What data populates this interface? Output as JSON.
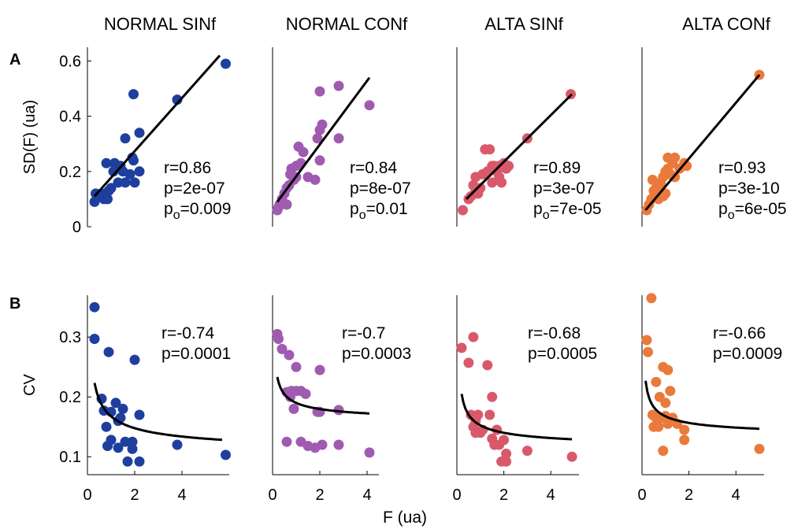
{
  "figure": {
    "column_titles": [
      "NORMAL SINf",
      "NORMAL CONf",
      "ALTA SINf",
      "ALTA CONf"
    ],
    "row_labels": [
      "A",
      "B"
    ],
    "xlabel": "F (ua)",
    "colors": [
      "#1f3f9f",
      "#a05bb0",
      "#d9596a",
      "#ea7a3c"
    ]
  },
  "chart_data": [
    {
      "type": "scatter",
      "row": "A",
      "title": "NORMAL SINf",
      "ylabel": "SD(F) (ua)",
      "xlim": [
        0,
        6.0
      ],
      "ylim": [
        0,
        0.65
      ],
      "yticks": [
        "0",
        "0.2",
        "0.4",
        "0.6"
      ],
      "xticks": [],
      "color": "#1f3f9f",
      "points": [
        [
          0.3,
          0.09
        ],
        [
          0.35,
          0.12
        ],
        [
          0.5,
          0.11
        ],
        [
          0.6,
          0.12
        ],
        [
          0.7,
          0.1
        ],
        [
          0.8,
          0.23
        ],
        [
          0.85,
          0.1
        ],
        [
          0.9,
          0.13
        ],
        [
          1.0,
          0.14
        ],
        [
          1.1,
          0.2
        ],
        [
          1.15,
          0.23
        ],
        [
          1.2,
          0.22
        ],
        [
          1.3,
          0.16
        ],
        [
          1.4,
          0.22
        ],
        [
          1.5,
          0.2
        ],
        [
          1.6,
          0.16
        ],
        [
          1.6,
          0.32
        ],
        [
          1.8,
          0.19
        ],
        [
          1.9,
          0.25
        ],
        [
          1.95,
          0.48
        ],
        [
          1.95,
          0.24
        ],
        [
          2.0,
          0.16
        ],
        [
          2.2,
          0.34
        ],
        [
          2.2,
          0.2
        ],
        [
          3.8,
          0.46
        ],
        [
          5.85,
          0.59
        ]
      ],
      "fit": {
        "kind": "linear",
        "x": [
          0.3,
          5.6
        ],
        "y": [
          0.11,
          0.62
        ]
      },
      "stats": [
        "r=0.86",
        "p=2e-07",
        "p",
        "o",
        "=0.009"
      ]
    },
    {
      "type": "scatter",
      "row": "A",
      "title": "NORMAL CONf",
      "ylabel": "",
      "xlim": [
        0,
        4.5
      ],
      "ylim": [
        0,
        0.65
      ],
      "yticks": [],
      "xticks": [],
      "color": "#a05bb0",
      "points": [
        [
          0.2,
          0.06
        ],
        [
          0.25,
          0.07
        ],
        [
          0.3,
          0.08
        ],
        [
          0.4,
          0.1
        ],
        [
          0.5,
          0.12
        ],
        [
          0.6,
          0.08
        ],
        [
          0.6,
          0.14
        ],
        [
          0.7,
          0.15
        ],
        [
          0.75,
          0.19
        ],
        [
          0.8,
          0.21
        ],
        [
          0.9,
          0.17
        ],
        [
          1.0,
          0.18
        ],
        [
          1.0,
          0.22
        ],
        [
          1.1,
          0.29
        ],
        [
          1.2,
          0.23
        ],
        [
          1.3,
          0.27
        ],
        [
          1.5,
          0.18
        ],
        [
          1.8,
          0.17
        ],
        [
          1.9,
          0.32
        ],
        [
          2.0,
          0.24
        ],
        [
          2.0,
          0.35
        ],
        [
          2.0,
          0.49
        ],
        [
          2.1,
          0.37
        ],
        [
          2.8,
          0.32
        ],
        [
          2.8,
          0.51
        ],
        [
          4.1,
          0.44
        ]
      ],
      "fit": {
        "kind": "linear",
        "x": [
          0.2,
          4.1
        ],
        "y": [
          0.09,
          0.54
        ]
      },
      "stats": [
        "r=0.84",
        "p=8e-07",
        "p",
        "o",
        "=0.01"
      ]
    },
    {
      "type": "scatter",
      "row": "A",
      "title": "ALTA SINf",
      "ylabel": "",
      "xlim": [
        0,
        5.2
      ],
      "ylim": [
        0,
        0.65
      ],
      "yticks": [],
      "xticks": [],
      "color": "#d9596a",
      "points": [
        [
          0.25,
          0.06
        ],
        [
          0.5,
          0.1
        ],
        [
          0.6,
          0.11
        ],
        [
          0.7,
          0.15
        ],
        [
          0.8,
          0.13
        ],
        [
          0.8,
          0.18
        ],
        [
          0.9,
          0.12
        ],
        [
          1.0,
          0.14
        ],
        [
          1.1,
          0.19
        ],
        [
          1.2,
          0.28
        ],
        [
          1.3,
          0.2
        ],
        [
          1.4,
          0.28
        ],
        [
          1.5,
          0.16
        ],
        [
          1.5,
          0.22
        ],
        [
          1.6,
          0.22
        ],
        [
          1.7,
          0.2
        ],
        [
          1.8,
          0.18
        ],
        [
          1.8,
          0.22
        ],
        [
          1.9,
          0.16
        ],
        [
          2.0,
          0.23
        ],
        [
          2.1,
          0.21
        ],
        [
          2.2,
          0.22
        ],
        [
          3.0,
          0.32
        ],
        [
          4.85,
          0.48
        ]
      ],
      "fit": {
        "kind": "linear",
        "x": [
          0.4,
          4.9
        ],
        "y": [
          0.1,
          0.48
        ]
      },
      "stats": [
        "r=0.89",
        "p=3e-07",
        "p",
        "o",
        "=7e-05"
      ]
    },
    {
      "type": "scatter",
      "row": "A",
      "title": "ALTA CONf",
      "ylabel": "",
      "xlim": [
        0,
        5.2
      ],
      "ylim": [
        0,
        0.65
      ],
      "yticks": [],
      "xticks": [],
      "color": "#ea7a3c",
      "points": [
        [
          0.2,
          0.06
        ],
        [
          0.3,
          0.08
        ],
        [
          0.4,
          0.1
        ],
        [
          0.45,
          0.17
        ],
        [
          0.5,
          0.13
        ],
        [
          0.6,
          0.12
        ],
        [
          0.6,
          0.14
        ],
        [
          0.7,
          0.1
        ],
        [
          0.75,
          0.14
        ],
        [
          0.8,
          0.16
        ],
        [
          0.9,
          0.11
        ],
        [
          0.9,
          0.18
        ],
        [
          1.0,
          0.12
        ],
        [
          1.0,
          0.2
        ],
        [
          1.1,
          0.25
        ],
        [
          1.1,
          0.21
        ],
        [
          1.2,
          0.19
        ],
        [
          1.3,
          0.23
        ],
        [
          1.4,
          0.25
        ],
        [
          1.4,
          0.18
        ],
        [
          1.6,
          0.21
        ],
        [
          1.8,
          0.23
        ],
        [
          1.9,
          0.22
        ],
        [
          5.0,
          0.55
        ]
      ],
      "fit": {
        "kind": "linear",
        "x": [
          0.15,
          5.0
        ],
        "y": [
          0.06,
          0.55
        ]
      },
      "stats": [
        "r=0.93",
        "p=3e-10",
        "p",
        "o",
        "=6e-05"
      ]
    },
    {
      "type": "scatter",
      "row": "B",
      "title": "NORMAL SINf",
      "ylabel": "CV",
      "xlim": [
        0,
        6.0
      ],
      "ylim": [
        0.07,
        0.37
      ],
      "yticks": [
        "0.1",
        "0.2",
        "0.3"
      ],
      "xticks": [
        "0",
        "2",
        "4"
      ],
      "color": "#1f3f9f",
      "points": [
        [
          0.3,
          0.35
        ],
        [
          0.3,
          0.297
        ],
        [
          0.6,
          0.197
        ],
        [
          0.7,
          0.177
        ],
        [
          0.8,
          0.15
        ],
        [
          0.85,
          0.118
        ],
        [
          0.9,
          0.275
        ],
        [
          1.0,
          0.128
        ],
        [
          1.0,
          0.175
        ],
        [
          1.2,
          0.19
        ],
        [
          1.3,
          0.16
        ],
        [
          1.3,
          0.115
        ],
        [
          1.4,
          0.165
        ],
        [
          1.5,
          0.18
        ],
        [
          1.6,
          0.125
        ],
        [
          1.7,
          0.092
        ],
        [
          1.9,
          0.113
        ],
        [
          1.9,
          0.125
        ],
        [
          2.0,
          0.262
        ],
        [
          2.2,
          0.092
        ],
        [
          2.2,
          0.17
        ],
        [
          3.8,
          0.12
        ],
        [
          5.85,
          0.103
        ]
      ],
      "fit": {
        "kind": "hyperbolic",
        "a": 0.1,
        "b": 0.0675,
        "x": [
          0.3,
          5.7
        ]
      },
      "stats": [
        "r=-0.74",
        "p=0.0001"
      ]
    },
    {
      "type": "scatter",
      "row": "B",
      "title": "NORMAL CONf",
      "ylabel": "",
      "xlim": [
        0,
        4.5
      ],
      "ylim": [
        0.07,
        0.37
      ],
      "yticks": [],
      "xticks": [
        "0",
        "2",
        "4"
      ],
      "color": "#a05bb0",
      "points": [
        [
          0.2,
          0.305
        ],
        [
          0.25,
          0.297
        ],
        [
          0.4,
          0.28
        ],
        [
          0.6,
          0.208
        ],
        [
          0.6,
          0.125
        ],
        [
          0.7,
          0.27
        ],
        [
          0.75,
          0.2
        ],
        [
          0.8,
          0.21
        ],
        [
          0.9,
          0.18
        ],
        [
          1.0,
          0.25
        ],
        [
          1.0,
          0.21
        ],
        [
          1.2,
          0.21
        ],
        [
          1.2,
          0.125
        ],
        [
          1.4,
          0.205
        ],
        [
          1.5,
          0.118
        ],
        [
          1.8,
          0.115
        ],
        [
          1.9,
          0.175
        ],
        [
          2.0,
          0.245
        ],
        [
          2.0,
          0.175
        ],
        [
          2.1,
          0.12
        ],
        [
          2.8,
          0.178
        ],
        [
          2.8,
          0.12
        ],
        [
          4.1,
          0.107
        ]
      ],
      "fit": {
        "kind": "hyperbolic",
        "a": 0.155,
        "b": 0.035,
        "x": [
          0.2,
          4.1
        ]
      },
      "stats": [
        "r=-0.7",
        "p=0.0003"
      ]
    },
    {
      "type": "scatter",
      "row": "B",
      "title": "ALTA SINf",
      "ylabel": "",
      "xlim": [
        0,
        5.2
      ],
      "ylim": [
        0.07,
        0.37
      ],
      "yticks": [],
      "xticks": [
        "0",
        "2",
        "4"
      ],
      "color": "#d9596a",
      "points": [
        [
          0.2,
          0.282
        ],
        [
          0.5,
          0.257
        ],
        [
          0.6,
          0.17
        ],
        [
          0.7,
          0.3
        ],
        [
          0.7,
          0.15
        ],
        [
          0.8,
          0.16
        ],
        [
          0.8,
          0.14
        ],
        [
          0.9,
          0.17
        ],
        [
          1.0,
          0.14
        ],
        [
          1.1,
          0.145
        ],
        [
          1.3,
          0.253
        ],
        [
          1.4,
          0.17
        ],
        [
          1.5,
          0.2
        ],
        [
          1.5,
          0.13
        ],
        [
          1.6,
          0.12
        ],
        [
          1.7,
          0.145
        ],
        [
          1.8,
          0.12
        ],
        [
          1.9,
          0.092
        ],
        [
          2.0,
          0.128
        ],
        [
          2.1,
          0.105
        ],
        [
          2.1,
          0.092
        ],
        [
          3.0,
          0.11
        ],
        [
          4.9,
          0.1
        ]
      ],
      "fit": {
        "kind": "hyperbolic",
        "a": 0.11,
        "b": 0.0425,
        "x": [
          0.2,
          4.9
        ]
      },
      "stats": [
        "r=-0.68",
        "p=0.0005"
      ]
    },
    {
      "type": "scatter",
      "row": "B",
      "title": "ALTA CONf",
      "ylabel": "",
      "xlim": [
        0,
        5.2
      ],
      "ylim": [
        0.07,
        0.37
      ],
      "yticks": [],
      "xticks": [
        "0",
        "2",
        "4"
      ],
      "color": "#ea7a3c",
      "points": [
        [
          0.2,
          0.295
        ],
        [
          0.25,
          0.275
        ],
        [
          0.4,
          0.365
        ],
        [
          0.45,
          0.17
        ],
        [
          0.5,
          0.15
        ],
        [
          0.6,
          0.165
        ],
        [
          0.6,
          0.225
        ],
        [
          0.7,
          0.15
        ],
        [
          0.75,
          0.2
        ],
        [
          0.8,
          0.165
        ],
        [
          0.9,
          0.25
        ],
        [
          0.9,
          0.11
        ],
        [
          1.0,
          0.168
        ],
        [
          1.0,
          0.19
        ],
        [
          1.1,
          0.245
        ],
        [
          1.1,
          0.155
        ],
        [
          1.2,
          0.21
        ],
        [
          1.3,
          0.165
        ],
        [
          1.5,
          0.155
        ],
        [
          1.8,
          0.145
        ],
        [
          1.8,
          0.128
        ],
        [
          5.0,
          0.113
        ]
      ],
      "fit": {
        "kind": "hyperbolic",
        "a": 0.13,
        "b": 0.0375,
        "x": [
          0.15,
          5.0
        ]
      },
      "stats": [
        "r=-0.66",
        "p=0.0009"
      ]
    }
  ]
}
